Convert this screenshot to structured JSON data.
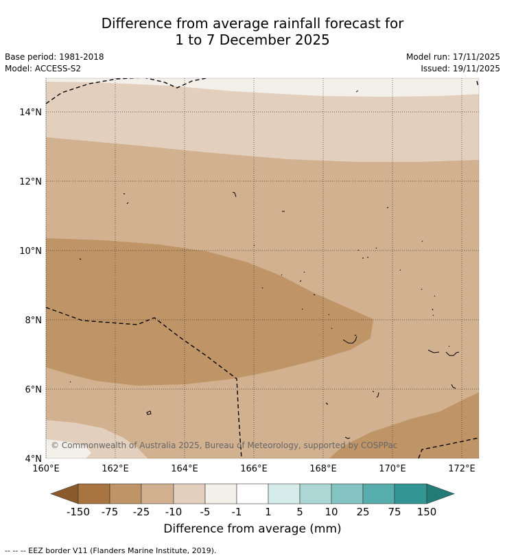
{
  "header": {
    "title_line1": "Difference from average rainfall forecast for",
    "title_line2": "1 to 7 December 2025",
    "base_period": "Base period: 1981-2018",
    "model": "Model: ACCESS-S2",
    "model_run": "Model run: 17/11/2025",
    "issued": "Issued: 19/11/2025"
  },
  "map": {
    "lon_labels": [
      "160°E",
      "162°E",
      "164°E",
      "166°E",
      "168°E",
      "170°E",
      "172°E"
    ],
    "lat_labels": [
      "14°N",
      "12°N",
      "10°N",
      "8°N",
      "6°N",
      "4°N"
    ],
    "copyright": "© Commonwealth of Australia 2025, Bureau of Meteorology, supported by COSPPac"
  },
  "colorbar": {
    "ticks": [
      "-150",
      "-75",
      "-25",
      "-10",
      "-5",
      "-1",
      "1",
      "5",
      "10",
      "25",
      "75",
      "150"
    ],
    "colors": {
      "below_min": "#8b5a2b",
      "m150_m75": "#a8743f",
      "m75_m25": "#bf9467",
      "m25_m10": "#d2b190",
      "m10_m5": "#e3cfbd",
      "m5_m1": "#f3efe9",
      "m1_p1": "#ffffff",
      "p1_p5": "#d6ecea",
      "p5_p10": "#acd7d5",
      "p10_p25": "#83c3c2",
      "p25_p75": "#57adab",
      "p75_p150": "#339694",
      "above_max": "#247c79"
    },
    "label": "Difference from average (mm)"
  },
  "footer": {
    "legend_text": "--  --  -- EEZ border V11 (Flanders Marine Institute, 2019)."
  }
}
